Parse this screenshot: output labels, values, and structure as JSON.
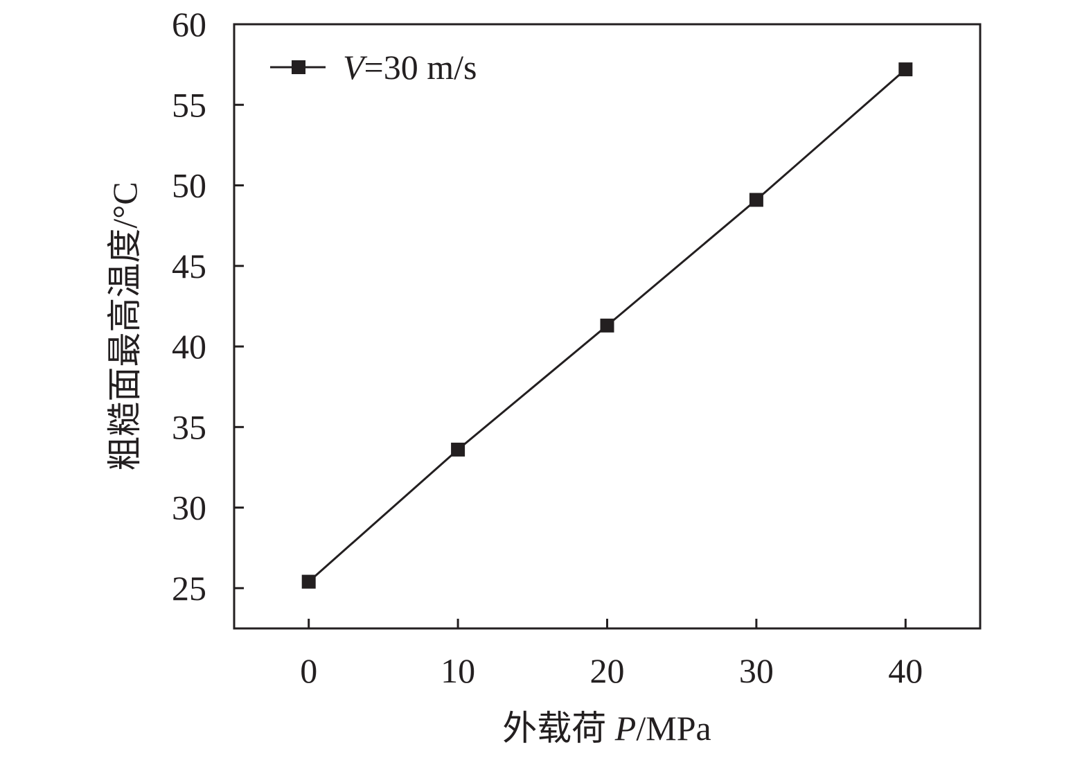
{
  "chart_data": {
    "type": "line",
    "title": "",
    "xlabel": {
      "prefix": "外载荷 ",
      "var": "P",
      "suffix": "/MPa"
    },
    "ylabel": "粗糙面最高温度/°C",
    "xlim": [
      -5,
      45
    ],
    "ylim": [
      22.5,
      60
    ],
    "xticks": [
      0,
      10,
      20,
      30,
      40
    ],
    "yticks": [
      25,
      30,
      35,
      40,
      45,
      50,
      55,
      60
    ],
    "grid": false,
    "legend_position": "top-left",
    "series": [
      {
        "name": {
          "var": "V",
          "suffix": "=30 m/s"
        },
        "marker": "square",
        "color": "#231f20",
        "x": [
          0,
          10,
          20,
          30,
          40
        ],
        "y": [
          25.4,
          33.6,
          41.3,
          49.1,
          57.2
        ]
      }
    ]
  }
}
